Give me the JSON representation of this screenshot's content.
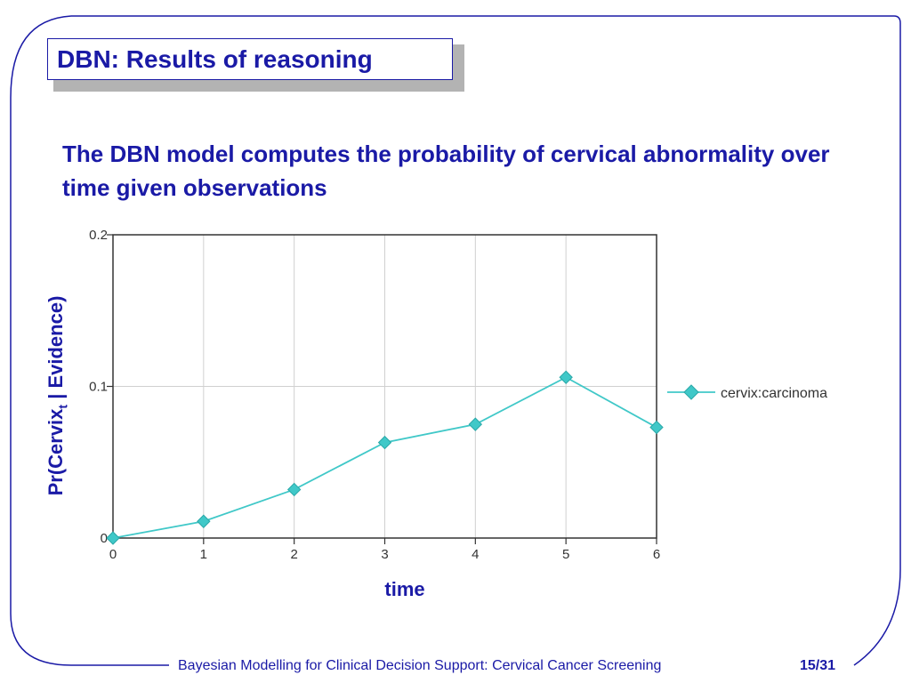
{
  "slide": {
    "title": "DBN: Results of reasoning",
    "subtitle": "The DBN model computes the probability of cervical abnormality over time given observations",
    "footer": "Bayesian Modelling for Clinical Decision Support: Cervical Cancer Screening",
    "page": "15/31"
  },
  "colors": {
    "text_blue": "#1a1aa6",
    "series": "#40c8c8",
    "grid": "#d0d0d0"
  },
  "chart_data": {
    "type": "line",
    "x": [
      0,
      1,
      2,
      3,
      4,
      5,
      6
    ],
    "series": [
      {
        "name": "cervix:carcinoma",
        "values": [
          0.0,
          0.011,
          0.032,
          0.063,
          0.075,
          0.106,
          0.073
        ]
      }
    ],
    "xlabel": "time",
    "ylabel_main": "Pr(Cervix",
    "ylabel_sub": "t",
    "ylabel_rest": " | Evidence)",
    "x_ticks": [
      "0",
      "1",
      "2",
      "3",
      "4",
      "5",
      "6"
    ],
    "y_ticks": [
      "0",
      "0.1",
      "0.2"
    ],
    "y_tick_values": [
      0,
      0.1,
      0.2
    ],
    "xlim": [
      0,
      6
    ],
    "ylim": [
      0,
      0.2
    ],
    "grid": true,
    "legend_position": "right"
  }
}
